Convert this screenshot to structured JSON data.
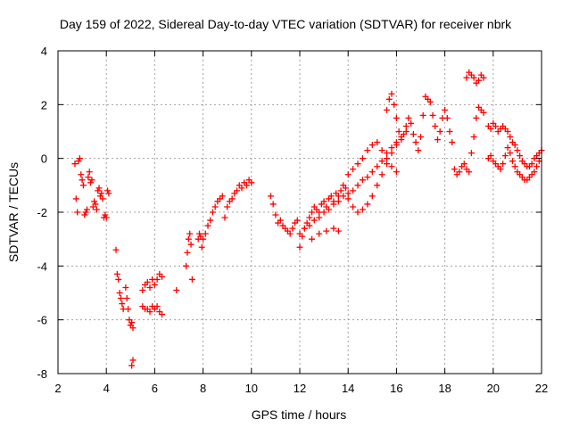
{
  "chart_data": {
    "type": "scatter",
    "title": "Day 159 of 2022, Sidereal Day-to-day VTEC variation (SDTVAR) for receiver nbrk",
    "xlabel": "GPS time / hours",
    "ylabel": "SDTVAR / TECUs",
    "xlim": [
      2,
      22
    ],
    "ylim": [
      -8,
      4
    ],
    "xticks": [
      "2",
      "4",
      "6",
      "8",
      "10",
      "12",
      "14",
      "16",
      "18",
      "20",
      "22"
    ],
    "yticks": [
      "-8",
      "-6",
      "-4",
      "-2",
      "0",
      "2",
      "4"
    ],
    "grid": true,
    "marker": "+",
    "color": "#ff0000",
    "series": [
      {
        "name": "nbrk",
        "x": [
          2.7,
          2.75,
          2.8,
          2.85,
          2.9,
          2.95,
          3.0,
          3.05,
          3.1,
          3.15,
          3.2,
          3.25,
          3.3,
          3.35,
          3.4,
          3.45,
          3.5,
          3.55,
          3.6,
          3.65,
          3.7,
          3.75,
          3.8,
          3.85,
          3.9,
          3.95,
          4.0,
          4.05,
          4.1,
          4.4,
          4.45,
          4.5,
          4.55,
          4.6,
          4.65,
          4.7,
          4.8,
          4.85,
          4.9,
          4.95,
          5.0,
          5.05,
          5.1,
          5.05,
          5.1,
          5.5,
          5.6,
          5.7,
          5.8,
          5.9,
          6.0,
          6.1,
          6.2,
          6.3,
          5.5,
          5.6,
          5.7,
          5.8,
          5.9,
          6.0,
          6.1,
          6.2,
          6.3,
          6.9,
          7.3,
          7.35,
          7.4,
          7.45,
          7.5,
          7.55,
          7.8,
          7.85,
          7.9,
          7.95,
          8.0,
          8.1,
          8.2,
          8.3,
          8.4,
          8.5,
          8.6,
          8.7,
          8.8,
          8.9,
          9.0,
          9.1,
          9.2,
          9.3,
          9.4,
          9.5,
          9.6,
          9.7,
          9.8,
          9.9,
          10.0,
          10.8,
          10.9,
          11.0,
          11.1,
          11.2,
          11.3,
          11.4,
          11.5,
          11.6,
          11.7,
          11.8,
          11.9,
          12.0,
          12.1,
          12.2,
          12.3,
          12.4,
          12.5,
          12.6,
          12.7,
          12.8,
          12.9,
          13.0,
          13.1,
          13.2,
          13.3,
          13.4,
          13.5,
          13.6,
          13.7,
          13.8,
          13.9,
          12.0,
          12.2,
          12.4,
          12.6,
          12.8,
          13.0,
          13.2,
          13.4,
          13.6,
          13.8,
          14.0,
          14.2,
          14.4,
          14.6,
          14.8,
          15.0,
          15.2,
          15.4,
          15.6,
          15.8,
          16.0,
          14.0,
          14.2,
          14.4,
          14.6,
          14.8,
          15.0,
          15.2,
          15.4,
          15.6,
          15.8,
          16.0,
          16.2,
          16.4,
          14.0,
          14.2,
          14.4,
          14.6,
          14.8,
          15.0,
          15.2,
          15.4,
          15.6,
          15.8,
          16.0,
          12.5,
          12.8,
          13.1,
          13.4,
          13.6,
          15.6,
          15.7,
          15.8,
          15.9,
          16.0,
          16.1,
          16.2,
          16.3,
          16.4,
          16.5,
          16.6,
          16.7,
          16.8,
          16.9,
          17.0,
          17.1,
          17.2,
          17.3,
          17.4,
          17.5,
          17.6,
          17.7,
          17.8,
          17.9,
          18.0,
          18.1,
          18.2,
          18.3,
          18.4,
          18.5,
          18.6,
          18.7,
          18.8,
          18.9,
          19.0,
          19.1,
          19.2,
          19.3,
          19.4,
          19.5,
          19.6,
          18.9,
          19.0,
          19.1,
          19.2,
          19.3,
          19.4,
          19.5,
          19.6,
          19.8,
          19.9,
          20.0,
          20.1,
          20.2,
          20.3,
          20.4,
          20.5,
          20.6,
          20.7,
          20.8,
          20.9,
          21.0,
          21.1,
          21.2,
          21.3,
          21.4,
          21.5,
          21.6,
          21.7,
          21.8,
          21.9,
          19.8,
          19.9,
          20.0,
          20.1,
          20.2,
          20.3,
          20.4,
          20.5,
          20.6,
          20.7,
          20.8,
          20.9,
          21.0,
          21.1,
          21.2,
          21.3,
          21.4,
          21.5,
          21.6,
          21.7,
          21.8,
          21.9,
          22.0
        ],
        "y": [
          -0.2,
          -1.5,
          -2.0,
          -0.1,
          0.0,
          -0.6,
          -0.8,
          -1.0,
          -2.1,
          -2.0,
          -1.9,
          -0.7,
          -0.5,
          -0.9,
          -0.8,
          -1.8,
          -1.6,
          -1.7,
          -1.9,
          -1.2,
          -1.1,
          -1.4,
          -1.3,
          -1.5,
          -2.2,
          -2.1,
          -2.2,
          -1.2,
          -1.3,
          -3.4,
          -4.3,
          -4.5,
          -5.0,
          -5.2,
          -5.4,
          -5.6,
          -4.8,
          -5.2,
          -5.6,
          -6.0,
          -6.2,
          -6.1,
          -6.3,
          -7.7,
          -7.5,
          -4.9,
          -4.7,
          -4.6,
          -4.8,
          -4.5,
          -4.7,
          -4.5,
          -4.3,
          -4.4,
          -5.5,
          -5.6,
          -5.6,
          -5.7,
          -5.5,
          -5.6,
          -5.5,
          -5.7,
          -5.8,
          -4.9,
          -4.0,
          -3.5,
          -3.0,
          -2.8,
          -3.2,
          -4.5,
          -3.0,
          -2.8,
          -2.9,
          -3.3,
          -3.0,
          -2.8,
          -2.5,
          -2.3,
          -2.0,
          -1.8,
          -1.6,
          -1.5,
          -1.4,
          -2.2,
          -1.8,
          -1.6,
          -1.5,
          -1.3,
          -1.2,
          -1.0,
          -1.1,
          -0.9,
          -1.0,
          -0.8,
          -0.9,
          -1.4,
          -1.7,
          -2.1,
          -2.4,
          -2.3,
          -2.5,
          -2.6,
          -2.7,
          -2.8,
          -2.6,
          -2.4,
          -2.3,
          -3.3,
          -2.9,
          -2.6,
          -2.4,
          -2.2,
          -2.0,
          -1.8,
          -1.9,
          -2.0,
          -1.7,
          -1.6,
          -1.8,
          -1.5,
          -1.4,
          -1.6,
          -1.3,
          -1.4,
          -1.2,
          -1.0,
          -1.1,
          -2.8,
          -2.6,
          -2.5,
          -2.3,
          -2.2,
          -2.0,
          -1.9,
          -1.7,
          -1.6,
          -1.4,
          -1.3,
          -1.2,
          -1.0,
          -0.8,
          -0.7,
          -0.5,
          -0.3,
          -0.1,
          0.2,
          0.4,
          0.6,
          -1.5,
          -1.8,
          -2.0,
          -1.9,
          -1.7,
          -1.4,
          -1.0,
          -0.6,
          -0.2,
          0.2,
          0.5,
          0.8,
          1.0,
          -0.6,
          -0.4,
          -0.2,
          0.0,
          0.3,
          0.5,
          0.6,
          0.3,
          0.0,
          -0.3,
          -0.5,
          -3.0,
          -2.8,
          -2.7,
          -2.6,
          -2.7,
          1.8,
          2.2,
          2.4,
          2.0,
          1.5,
          1.0,
          0.7,
          0.9,
          1.2,
          1.5,
          1.3,
          0.9,
          0.6,
          0.3,
          0.8,
          1.6,
          2.3,
          2.2,
          2.1,
          1.6,
          1.2,
          0.7,
          1.0,
          1.5,
          1.8,
          1.5,
          1.0,
          0.6,
          -0.4,
          -0.6,
          -0.5,
          -0.3,
          -0.2,
          -0.4,
          -0.5,
          0.2,
          0.8,
          1.5,
          1.9,
          1.8,
          1.7,
          3.0,
          3.2,
          3.1,
          3.0,
          2.8,
          2.9,
          3.1,
          3.0,
          0.0,
          0.1,
          -0.1,
          -0.2,
          -0.3,
          -0.4,
          -0.2,
          0.1,
          0.4,
          0.2,
          -0.1,
          -0.3,
          -0.5,
          -0.6,
          -0.7,
          -0.8,
          -0.8,
          -0.7,
          -0.6,
          -0.5,
          -0.3,
          -0.1,
          1.2,
          1.1,
          1.3,
          1.2,
          1.0,
          1.1,
          1.2,
          1.1,
          1.0,
          0.8,
          0.6,
          0.5,
          0.3,
          0.1,
          -0.1,
          -0.2,
          -0.3,
          -0.3,
          -0.2,
          0.0,
          0.1,
          0.2,
          0.3
        ]
      }
    ]
  }
}
